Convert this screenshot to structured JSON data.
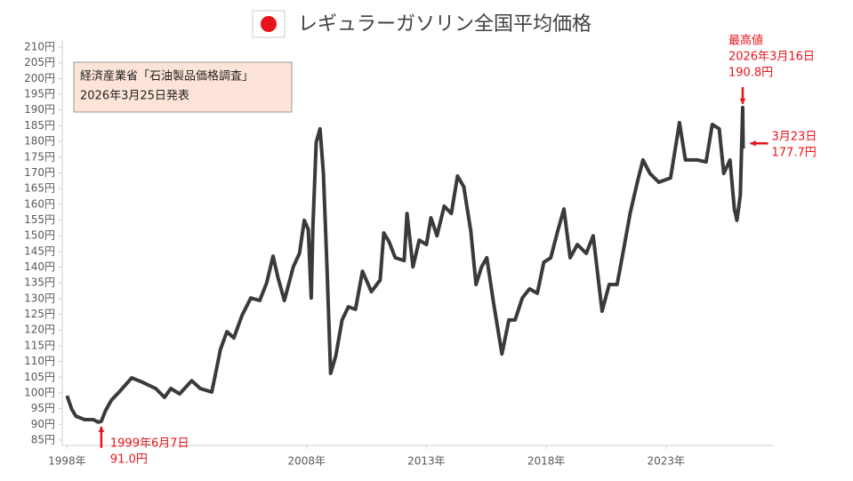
{
  "chart_data": {
    "type": "line",
    "title": "レギュラーガソリン全国平均価格",
    "source": [
      "経済産業省「石油製品価格調査」",
      "2026年3月25日発表"
    ],
    "annotations": [
      {
        "lines": [
          "最高値",
          "2026年3月16日",
          "190.8円"
        ],
        "x": 2026.2,
        "y": 190.8
      },
      {
        "lines": [
          "3月23日",
          "177.7円"
        ],
        "x": 2026.22,
        "y": 177.7
      },
      {
        "lines": [
          "1999年6月7日",
          "91.0円"
        ],
        "x": 1999.43,
        "y": 91.0
      }
    ],
    "xlim": [
      1997.8,
      2027.5
    ],
    "ylim": [
      85,
      210
    ],
    "xticks": [
      {
        "value": 1998,
        "label": "1998年"
      },
      {
        "value": 2008,
        "label": "2008年"
      },
      {
        "value": 2013,
        "label": "2013年"
      },
      {
        "value": 2018,
        "label": "2018年"
      },
      {
        "value": 2023,
        "label": "2023年"
      }
    ],
    "yticks": [
      {
        "value": 85,
        "label": "85円"
      },
      {
        "value": 90,
        "label": "90円"
      },
      {
        "value": 95,
        "label": "95円"
      },
      {
        "value": 100,
        "label": "100円"
      },
      {
        "value": 105,
        "label": "105円"
      },
      {
        "value": 110,
        "label": "110円"
      },
      {
        "value": 115,
        "label": "115円"
      },
      {
        "value": 120,
        "label": "120円"
      },
      {
        "value": 125,
        "label": "125円"
      },
      {
        "value": 130,
        "label": "130円"
      },
      {
        "value": 135,
        "label": "135円"
      },
      {
        "value": 140,
        "label": "140円"
      },
      {
        "value": 145,
        "label": "145円"
      },
      {
        "value": 150,
        "label": "150円"
      },
      {
        "value": 155,
        "label": "155円"
      },
      {
        "value": 160,
        "label": "160円"
      },
      {
        "value": 165,
        "label": "165円"
      },
      {
        "value": 170,
        "label": "170円"
      },
      {
        "value": 175,
        "label": "175円"
      },
      {
        "value": 180,
        "label": "180円"
      },
      {
        "value": 185,
        "label": "185円"
      },
      {
        "value": 190,
        "label": "190円"
      },
      {
        "value": 195,
        "label": "195円"
      },
      {
        "value": 200,
        "label": "200円"
      },
      {
        "value": 205,
        "label": "205円"
      },
      {
        "value": 210,
        "label": "210円"
      }
    ],
    "grid": false,
    "color": "#3a3a3a",
    "x": [
      1998.0,
      1998.19,
      1998.37,
      1998.74,
      1999.1,
      1999.3,
      1999.43,
      1999.6,
      1999.85,
      2000.2,
      2000.7,
      2001.15,
      2001.7,
      2002.07,
      2002.33,
      2002.7,
      2003.2,
      2003.56,
      2004.04,
      2004.2,
      2004.4,
      2004.67,
      2004.96,
      2005.3,
      2005.67,
      2006.04,
      2006.33,
      2006.6,
      2006.8,
      2007.07,
      2007.44,
      2007.7,
      2007.9,
      2008.07,
      2008.19,
      2008.26,
      2008.4,
      2008.56,
      2008.7,
      2008.85,
      2009.0,
      2009.22,
      2009.48,
      2009.74,
      2010.04,
      2010.33,
      2010.7,
      2011.07,
      2011.22,
      2011.44,
      2011.7,
      2012.07,
      2012.19,
      2012.44,
      2012.7,
      2013.0,
      2013.19,
      2013.44,
      2013.74,
      2014.04,
      2014.3,
      2014.56,
      2014.85,
      2015.07,
      2015.3,
      2015.52,
      2015.8,
      2016.15,
      2016.44,
      2016.7,
      2017.0,
      2017.3,
      2017.63,
      2017.9,
      2018.19,
      2018.48,
      2018.74,
      2019.0,
      2019.3,
      2019.67,
      2019.96,
      2020.33,
      2020.63,
      2020.96,
      2021.2,
      2021.5,
      2021.8,
      2022.04,
      2022.33,
      2022.7,
      2023.19,
      2023.56,
      2023.81,
      2024.3,
      2024.67,
      2024.93,
      2025.22,
      2025.41,
      2025.67,
      2025.85,
      2025.96,
      2026.1,
      2026.2,
      2026.22
    ],
    "values": [
      99.1,
      94.9,
      92.6,
      91.5,
      91.5,
      90.7,
      91.0,
      94.3,
      97.7,
      100.5,
      104.8,
      103.4,
      101.4,
      98.6,
      101.4,
      99.7,
      103.9,
      101.4,
      100.3,
      106.2,
      113.8,
      119.5,
      117.5,
      124.6,
      130.2,
      129.4,
      135,
      143.5,
      136.8,
      129.4,
      140.1,
      144.4,
      154.9,
      152,
      130.2,
      152.9,
      179.7,
      184,
      169.8,
      140.1,
      106.2,
      111.9,
      123.2,
      127.4,
      126.6,
      138.7,
      132.2,
      135.9,
      150.9,
      148.1,
      143,
      142.1,
      157.1,
      140.1,
      148.6,
      147.2,
      155.7,
      150,
      159.4,
      157.1,
      169,
      165.6,
      151.5,
      134.5,
      140.1,
      143,
      128.8,
      112.4,
      123.2,
      123.2,
      130.2,
      133.1,
      131.7,
      141.6,
      143,
      151.5,
      158.5,
      143,
      147.2,
      144.4,
      150,
      126,
      134.5,
      134.5,
      144.4,
      157.1,
      167,
      174.1,
      169.8,
      167,
      168.4,
      186,
      174.1,
      174.1,
      173.5,
      185.4,
      184,
      169.8,
      174.1,
      158.5,
      154.9,
      162.8,
      190.8,
      177.7
    ]
  }
}
